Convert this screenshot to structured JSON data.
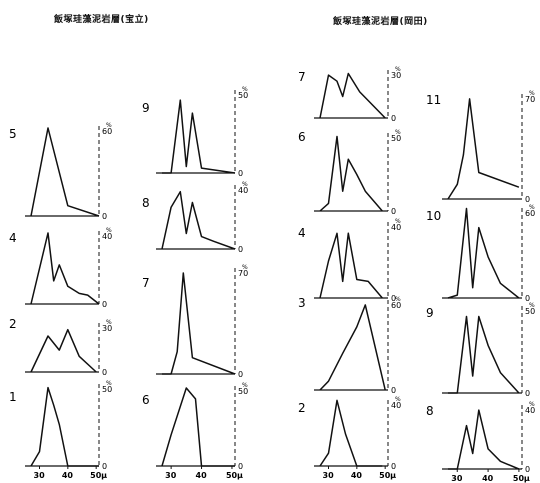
{
  "titles": {
    "left": "飯塚珪藻泥岩層(宝立)",
    "right": "飯塚珪藻泥岩層(岡田)"
  },
  "chart_data": {
    "type": "line",
    "description_of_units": "frequency (%) versus grain size (µ)",
    "x_tick_labels": [
      "30",
      "40",
      "50"
    ],
    "x_unit_label": "μ",
    "y_unit_label": "%",
    "groups": [
      {
        "title": "飯塚珪藻泥岩層(宝立)",
        "columns": [
          {
            "panels": [
              {
                "id": "5",
                "ymax": 60,
                "ytick_label": "60",
                "zero_label": "0",
                "x": [
                  27,
                  33,
                  40,
                  51
                ],
                "y": [
                  0,
                  60,
                  7,
                  0
                ]
              },
              {
                "id": "4",
                "ymax": 40,
                "ytick_label": "40",
                "zero_label": "0",
                "x": [
                  27,
                  33,
                  35,
                  37,
                  40,
                  44,
                  47,
                  51
                ],
                "y": [
                  0,
                  40,
                  13,
                  22,
                  10,
                  6,
                  5,
                  0
                ]
              },
              {
                "id": "2",
                "ymax": 30,
                "ytick_label": "30",
                "zero_label": "0",
                "x": [
                  27,
                  33,
                  37,
                  40,
                  44,
                  50
                ],
                "y": [
                  0,
                  23,
                  14,
                  27,
                  10,
                  0
                ]
              },
              {
                "id": "1",
                "ymax": 50,
                "ytick_label": "50",
                "zero_label": "0",
                "x": [
                  27,
                  30,
                  33,
                  35,
                  37,
                  40,
                  51
                ],
                "y": [
                  0,
                  9,
                  49,
                  38,
                  26,
                  0,
                  0
                ]
              }
            ]
          },
          {
            "panels": [
              {
                "id": "9",
                "ymax": 50,
                "ytick_label": "50",
                "zero_label": "0",
                "x": [
                  27,
                  30,
                  33,
                  35,
                  37,
                  40,
                  51
                ],
                "y": [
                  0,
                  0,
                  45,
                  4,
                  37,
                  3,
                  0
                ]
              },
              {
                "id": "8",
                "ymax": 40,
                "ytick_label": "40",
                "zero_label": "0",
                "x": [
                  27,
                  30,
                  33,
                  35,
                  37,
                  40,
                  44,
                  51
                ],
                "y": [
                  0,
                  27,
                  37,
                  10,
                  30,
                  8,
                  5,
                  0
                ]
              },
              {
                "id": "7",
                "ymax": 70,
                "ytick_label": "70",
                "zero_label": "0",
                "x": [
                  27,
                  30,
                  32,
                  34,
                  37,
                  51
                ],
                "y": [
                  0,
                  0,
                  15,
                  68,
                  11,
                  0
                ]
              },
              {
                "id": "6",
                "ymax": 50,
                "ytick_label": "50",
                "zero_label": "0",
                "x": [
                  27,
                  30,
                  35,
                  38,
                  40,
                  51
                ],
                "y": [
                  0,
                  20,
                  50,
                  43,
                  0,
                  0
                ]
              }
            ]
          }
        ]
      },
      {
        "title": "飯塚珪藻泥岩層(岡田)",
        "columns": [
          {
            "panels": [
              {
                "id": "7",
                "ymax": 30,
                "ytick_label": "30",
                "zero_label": "0",
                "x": [
                  27,
                  30,
                  33,
                  35,
                  37,
                  41,
                  50
                ],
                "y": [
                  0,
                  28,
                  24,
                  14,
                  29,
                  17,
                  0
                ]
              },
              {
                "id": "6",
                "ymax": 50,
                "ytick_label": "50",
                "zero_label": "0",
                "x": [
                  27,
                  30,
                  33,
                  35,
                  37,
                  40,
                  43,
                  49
                ],
                "y": [
                  0,
                  5,
                  49,
                  13,
                  34,
                  24,
                  13,
                  0
                ]
              },
              {
                "id": "4",
                "ymax": 40,
                "ytick_label": "40",
                "zero_label": "0",
                "x": [
                  27,
                  30,
                  33,
                  35,
                  37,
                  40,
                  44,
                  49
                ],
                "y": [
                  0,
                  20,
                  35,
                  9,
                  35,
                  10,
                  9,
                  0
                ]
              },
              {
                "id": "3",
                "ymax": 60,
                "ytick_label": "60",
                "zero_label": "0",
                "x": [
                  27,
                  30,
                  35,
                  40,
                  43,
                  50
                ],
                "y": [
                  0,
                  6,
                  25,
                  43,
                  58,
                  0
                ]
              },
              {
                "id": "2",
                "ymax": 40,
                "ytick_label": "40",
                "zero_label": "0",
                "x": [
                  27,
                  30,
                  33,
                  36,
                  40,
                  44,
                  49
                ],
                "y": [
                  0,
                  8,
                  41,
                  20,
                  0,
                  0,
                  0
                ]
              }
            ]
          },
          {
            "panels": [
              {
                "id": "11",
                "ymax": 70,
                "ytick_label": "70",
                "zero_label": "0",
                "x": [
                  27,
                  30,
                  32,
                  34,
                  37,
                  50
                ],
                "y": [
                  0,
                  10,
                  30,
                  68,
                  18,
                  8
                ]
              },
              {
                "id": "10",
                "ymax": 60,
                "ytick_label": "60",
                "zero_label": "0",
                "x": [
                  27,
                  30,
                  33,
                  35,
                  37,
                  40,
                  44,
                  50
                ],
                "y": [
                  0,
                  2,
                  61,
                  7,
                  48,
                  28,
                  10,
                  0
                ]
              },
              {
                "id": "9",
                "ymax": 50,
                "ytick_label": "50",
                "zero_label": "0",
                "x": [
                  27,
                  30,
                  33,
                  35,
                  37,
                  40,
                  44,
                  50
                ],
                "y": [
                  0,
                  0,
                  45,
                  10,
                  45,
                  28,
                  12,
                  0
                ]
              },
              {
                "id": "8",
                "ymax": 40,
                "ytick_label": "40",
                "zero_label": "0",
                "x": [
                  27,
                  30,
                  33,
                  35,
                  37,
                  40,
                  44,
                  50
                ],
                "y": [
                  0,
                  0,
                  28,
                  10,
                  38,
                  13,
                  5,
                  0
                ]
              }
            ]
          }
        ]
      }
    ]
  }
}
